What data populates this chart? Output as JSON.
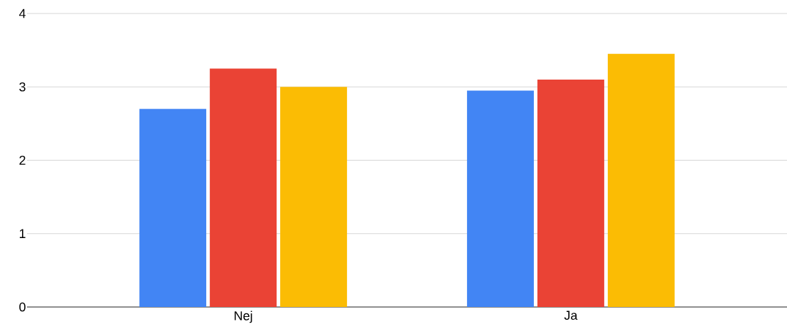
{
  "chart_data": {
    "type": "bar",
    "categories": [
      "Nej",
      "Ja"
    ],
    "series": [
      {
        "color": "#4285f4",
        "values": [
          2.7,
          2.95
        ]
      },
      {
        "color": "#ea4335",
        "values": [
          3.25,
          3.1
        ]
      },
      {
        "color": "#fbbc04",
        "values": [
          3.0,
          3.45
        ]
      }
    ],
    "ylim": [
      0,
      4
    ],
    "yticks": [
      0,
      1,
      2,
      3,
      4
    ],
    "grid": "y"
  }
}
